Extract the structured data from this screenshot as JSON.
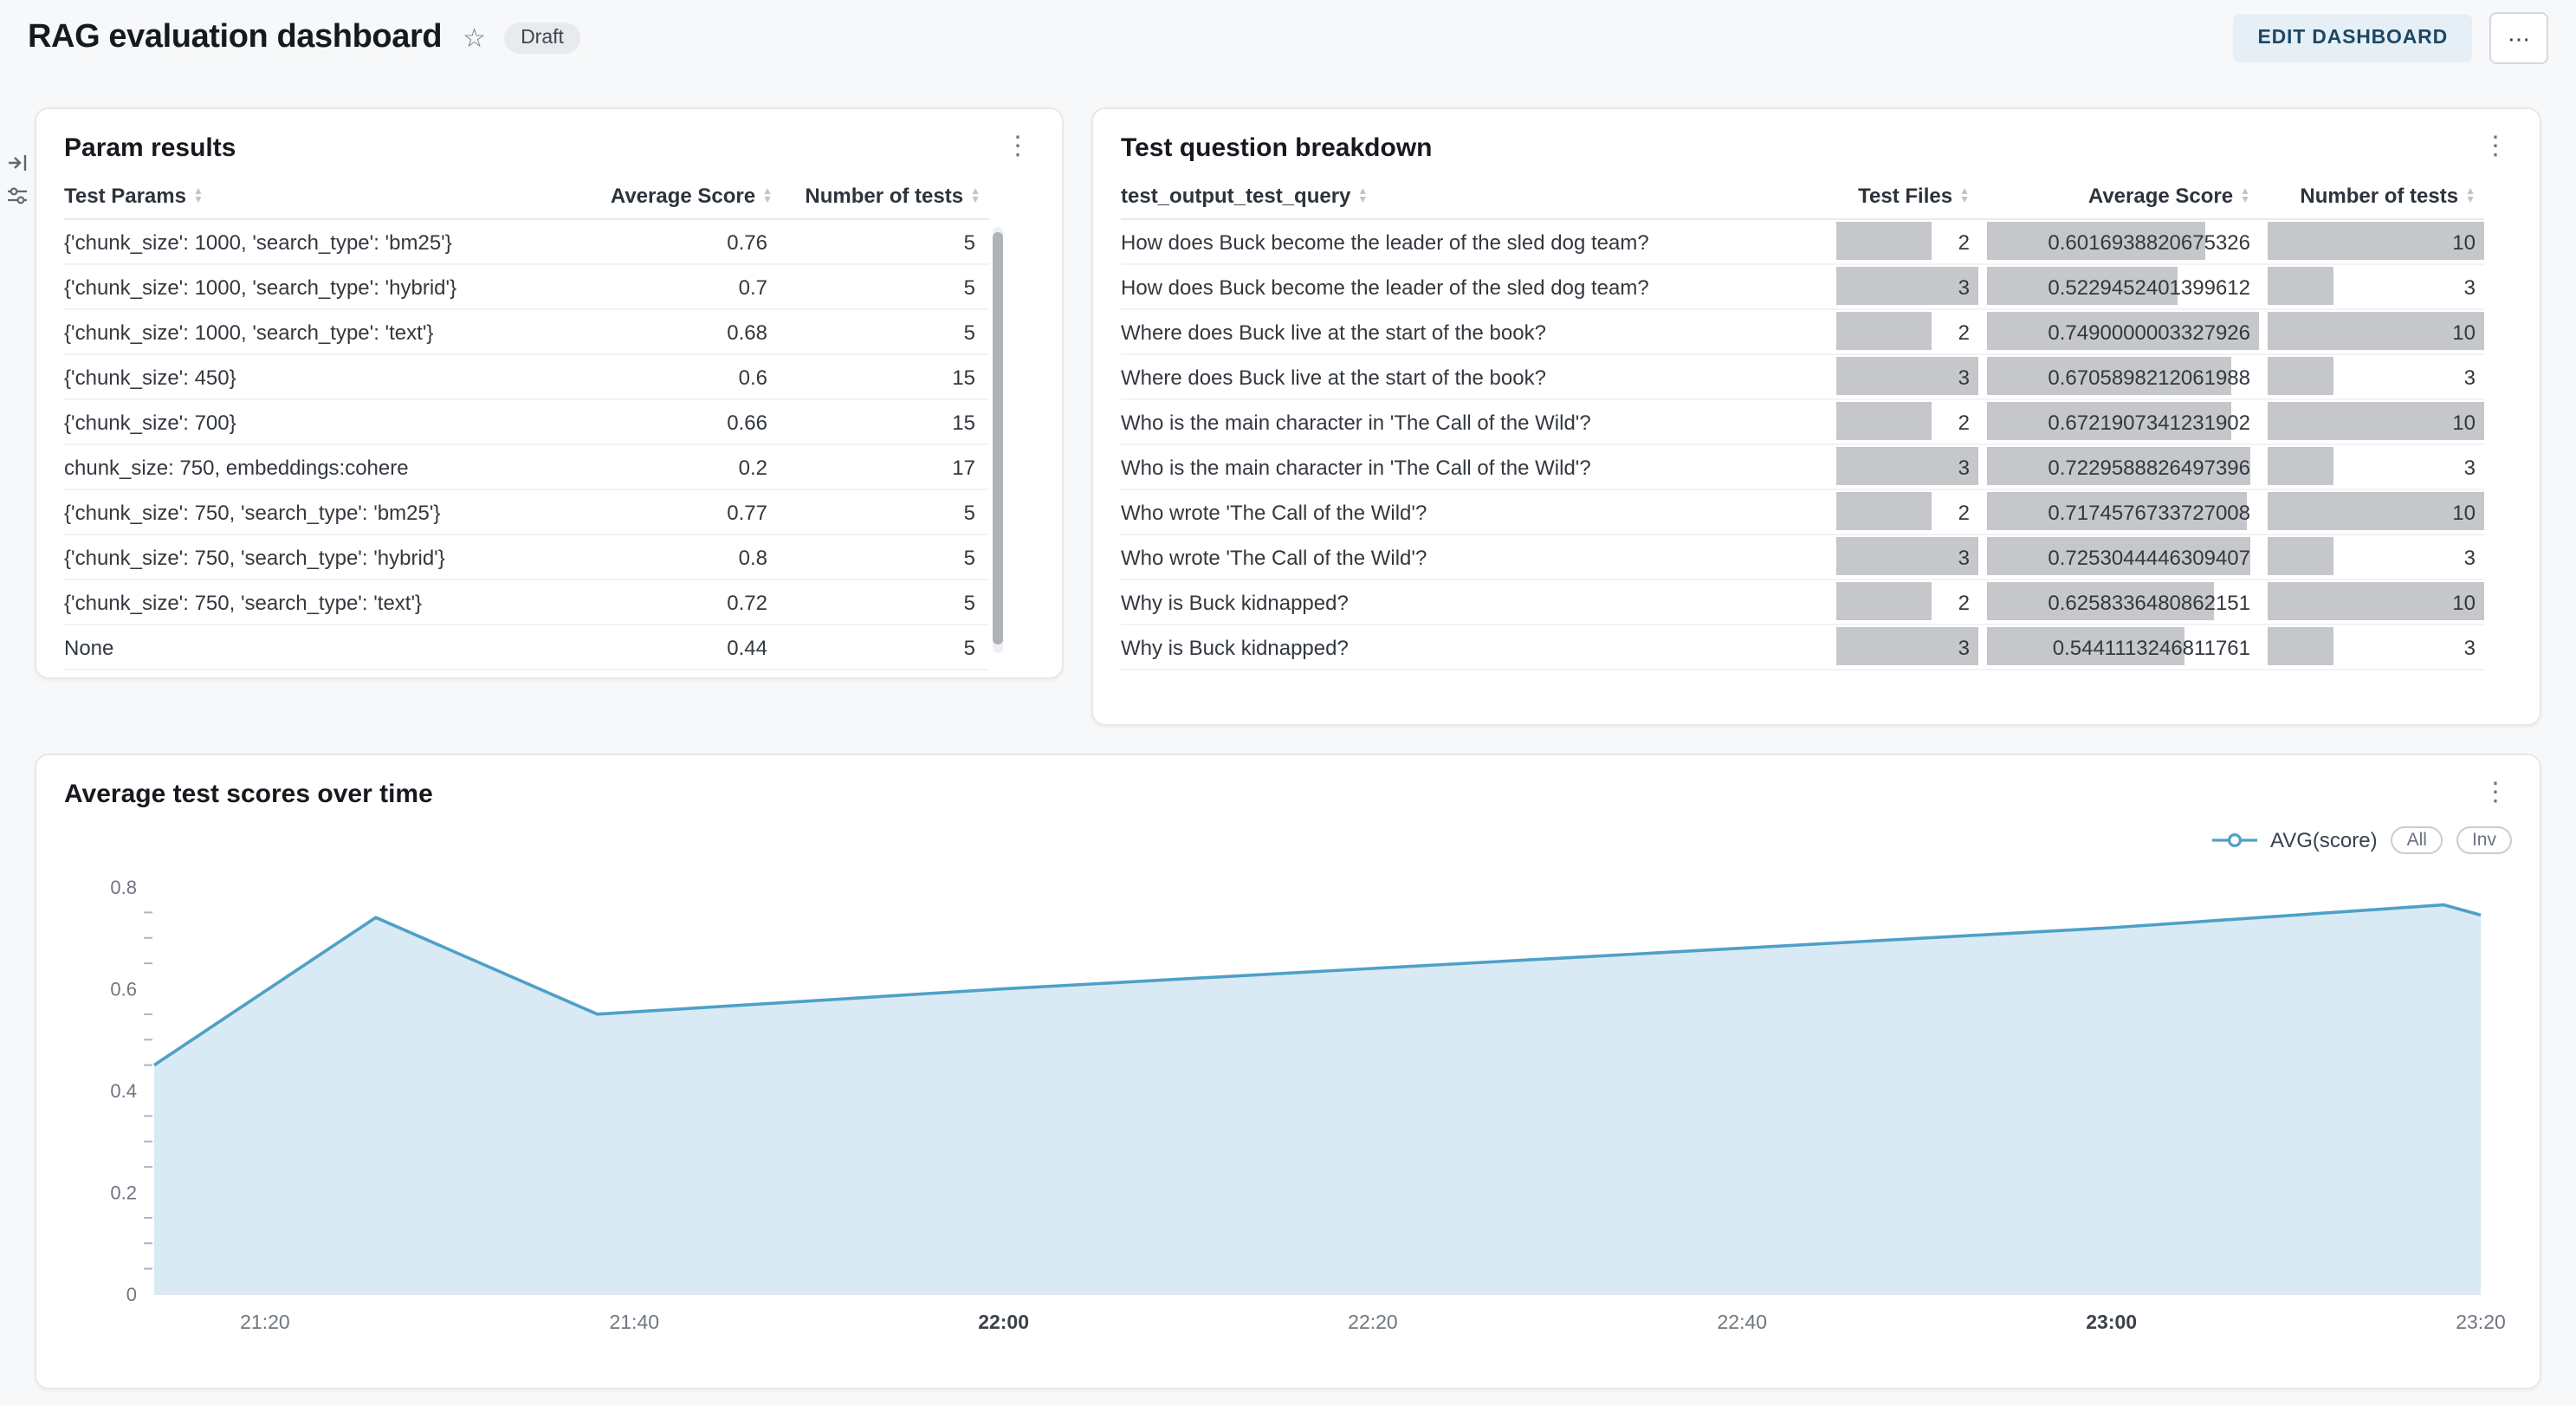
{
  "ui": {
    "kebab": "⋮",
    "star": "☆",
    "more": "⋯",
    "sort_asc": "▲",
    "sort_desc": "▼"
  },
  "header": {
    "title": "RAG evaluation dashboard",
    "badge": "Draft",
    "edit_button": "EDIT DASHBOARD"
  },
  "param_results": {
    "title": "Param results",
    "columns": [
      "Test Params",
      "Average Score",
      "Number of tests"
    ],
    "rows": [
      {
        "params": "{'chunk_size': 1000, 'search_type': 'bm25'}",
        "avg_score": "0.76",
        "num_tests": "5"
      },
      {
        "params": "{'chunk_size': 1000, 'search_type': 'hybrid'}",
        "avg_score": "0.7",
        "num_tests": "5"
      },
      {
        "params": "{'chunk_size': 1000, 'search_type': 'text'}",
        "avg_score": "0.68",
        "num_tests": "5"
      },
      {
        "params": "{'chunk_size': 450}",
        "avg_score": "0.6",
        "num_tests": "15"
      },
      {
        "params": "{'chunk_size': 700}",
        "avg_score": "0.66",
        "num_tests": "15"
      },
      {
        "params": "chunk_size: 750, embeddings:cohere",
        "avg_score": "0.2",
        "num_tests": "17"
      },
      {
        "params": "{'chunk_size': 750, 'search_type': 'bm25'}",
        "avg_score": "0.77",
        "num_tests": "5"
      },
      {
        "params": "{'chunk_size': 750, 'search_type': 'hybrid'}",
        "avg_score": "0.8",
        "num_tests": "5"
      },
      {
        "params": "{'chunk_size': 750, 'search_type': 'text'}",
        "avg_score": "0.72",
        "num_tests": "5"
      },
      {
        "params": "None",
        "avg_score": "0.44",
        "num_tests": "5"
      }
    ]
  },
  "question_breakdown": {
    "title": "Test question breakdown",
    "columns": [
      "test_output_test_query",
      "Test Files",
      "Average Score",
      "Number of tests"
    ],
    "bar_color": "#c5c7ca",
    "rows": [
      {
        "query": "How does Buck become the leader of the sled dog team?",
        "test_files": 2,
        "avg_score": "0.6016938820675326",
        "num_tests": 10
      },
      {
        "query": "How does Buck become the leader of the sled dog team?",
        "test_files": 3,
        "avg_score": "0.5229452401399612",
        "num_tests": 3
      },
      {
        "query": "Where does Buck live at the start of the book?",
        "test_files": 2,
        "avg_score": "0.7490000003327926",
        "num_tests": 10
      },
      {
        "query": "Where does Buck live at the start of the book?",
        "test_files": 3,
        "avg_score": "0.6705898212061988",
        "num_tests": 3
      },
      {
        "query": "Who is the main character in 'The Call of the Wild'?",
        "test_files": 2,
        "avg_score": "0.6721907341231902",
        "num_tests": 10
      },
      {
        "query": "Who is the main character in 'The Call of the Wild'?",
        "test_files": 3,
        "avg_score": "0.7229588826497396",
        "num_tests": 3
      },
      {
        "query": "Who wrote 'The Call of the Wild'?",
        "test_files": 2,
        "avg_score": "0.7174576733727008",
        "num_tests": 10
      },
      {
        "query": "Who wrote 'The Call of the Wild'?",
        "test_files": 3,
        "avg_score": "0.7253044446309407",
        "num_tests": 3
      },
      {
        "query": "Why is Buck kidnapped?",
        "test_files": 2,
        "avg_score": "0.6258336480862151",
        "num_tests": 10
      },
      {
        "query": "Why is Buck kidnapped?",
        "test_files": 3,
        "avg_score": "0.5441113246811761",
        "num_tests": 3
      }
    ]
  },
  "scores_panel": {
    "zoom_all": "All",
    "zoom_inv": "Inv"
  },
  "chart_data": {
    "type": "area",
    "title": "Average test scores over time",
    "series": [
      {
        "name": "AVG(score)",
        "x": [
          "21:14",
          "21:26",
          "21:38",
          "22:00",
          "22:20",
          "22:40",
          "23:00",
          "23:18",
          "23:20"
        ],
        "values": [
          0.45,
          0.74,
          0.55,
          0.6,
          0.64,
          0.68,
          0.72,
          0.765,
          0.745
        ]
      }
    ],
    "x_domain": [
      "21:14",
      "23:20"
    ],
    "x_ticks": [
      "21:20",
      "21:40",
      "22:00",
      "22:20",
      "22:40",
      "23:00",
      "23:20"
    ],
    "x_ticks_bold": [
      "22:00",
      "23:00"
    ],
    "y_ticks": [
      0,
      0.2,
      0.4,
      0.6,
      0.8
    ],
    "ylim": [
      0,
      0.8
    ],
    "y_minor_step": 0.05,
    "xlabel": "",
    "ylabel": "",
    "grid": false,
    "legend_position": "top-right",
    "line_color": "#4ea0c8",
    "fill_color": "#d9eaf4"
  }
}
